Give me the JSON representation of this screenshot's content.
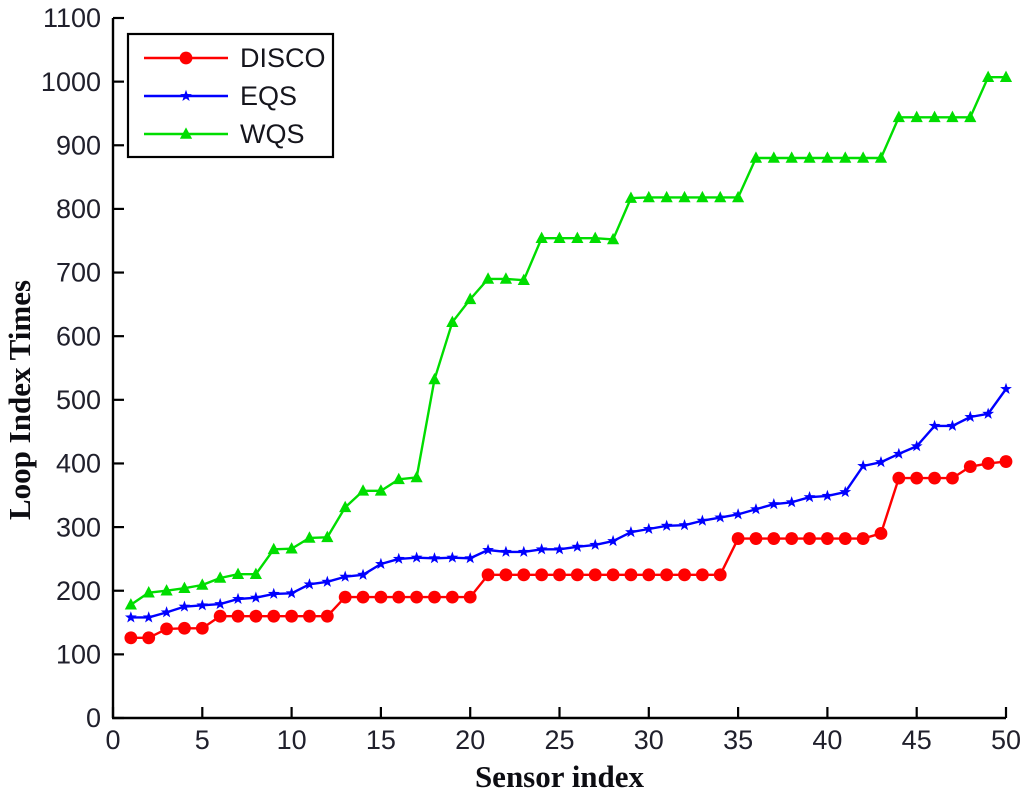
{
  "figure": {
    "background": "#ffffff",
    "axis_color": "#000000",
    "text_color": "#20202c"
  },
  "chart_data": {
    "type": "line",
    "title": "",
    "xlabel": "Sensor index",
    "ylabel": "Loop Index Times",
    "xlim": [
      0,
      50
    ],
    "ylim": [
      0,
      1100
    ],
    "x_ticks": [
      0,
      5,
      10,
      15,
      20,
      25,
      30,
      35,
      40,
      45,
      50
    ],
    "y_ticks": [
      0,
      100,
      200,
      300,
      400,
      500,
      600,
      700,
      800,
      900,
      1000,
      1100
    ],
    "grid": false,
    "legend_position": "top-left",
    "x": [
      1,
      2,
      3,
      4,
      5,
      6,
      7,
      8,
      9,
      10,
      11,
      12,
      13,
      14,
      15,
      16,
      17,
      18,
      19,
      20,
      21,
      22,
      23,
      24,
      25,
      26,
      27,
      28,
      29,
      30,
      31,
      32,
      33,
      34,
      35,
      36,
      37,
      38,
      39,
      40,
      41,
      42,
      43,
      44,
      45,
      46,
      47,
      48,
      49,
      50
    ],
    "series": [
      {
        "name": "DISCO",
        "color": "#ff0000",
        "marker": "circle",
        "values": [
          126,
          126,
          140,
          141,
          141,
          160,
          160,
          160,
          160,
          160,
          160,
          160,
          190,
          190,
          190,
          190,
          190,
          190,
          190,
          190,
          225,
          225,
          225,
          225,
          225,
          225,
          225,
          225,
          225,
          225,
          225,
          225,
          225,
          225,
          282,
          282,
          282,
          282,
          282,
          282,
          282,
          282,
          290,
          377,
          377,
          377,
          377,
          395,
          400,
          403
        ]
      },
      {
        "name": "EQS",
        "color": "#0000ff",
        "marker": "star",
        "values": [
          158,
          158,
          166,
          175,
          177,
          179,
          187,
          189,
          195,
          196,
          210,
          214,
          222,
          225,
          242,
          250,
          252,
          251,
          252,
          251,
          264,
          261,
          261,
          265,
          265,
          269,
          272,
          278,
          292,
          297,
          302,
          303,
          310,
          315,
          320,
          328,
          336,
          339,
          347,
          349,
          355,
          396,
          402,
          415,
          427,
          459,
          459,
          473,
          478,
          517
        ]
      },
      {
        "name": "WQS",
        "color": "#00dd00",
        "marker": "triangle-up",
        "values": [
          178,
          197,
          200,
          204,
          209,
          220,
          226,
          226,
          265,
          266,
          283,
          284,
          331,
          357,
          357,
          375,
          378,
          532,
          622,
          658,
          690,
          690,
          688,
          754,
          754,
          754,
          754,
          752,
          817,
          818,
          818,
          818,
          818,
          818,
          818,
          880,
          880,
          880,
          880,
          880,
          880,
          880,
          880,
          944,
          944,
          944,
          944,
          944,
          1007,
          1007
        ]
      }
    ]
  },
  "legend": {
    "entries": [
      "DISCO",
      "EQS",
      "WQS"
    ],
    "border_color": "#000000",
    "background": "#ffffff"
  }
}
